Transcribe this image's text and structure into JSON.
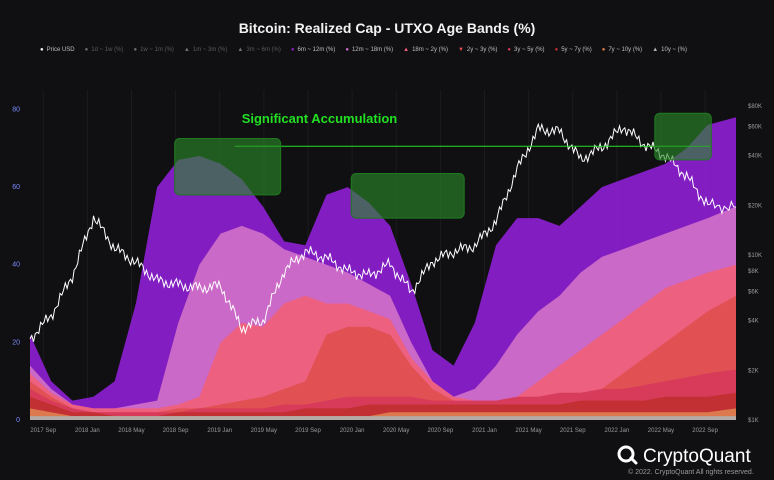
{
  "chart_data": {
    "type": "area",
    "title": "Bitcoin: Realized Cap - UTXO Age Bands (%)",
    "legend": [
      {
        "name": "Price USD",
        "active": true,
        "color": "#ffffff",
        "marker": "dot"
      },
      {
        "name": "1d ~ 1w (%)",
        "active": false,
        "color": "#6f6f6f",
        "marker": "dot"
      },
      {
        "name": "1w ~ 1m (%)",
        "active": false,
        "color": "#6f6f6f",
        "marker": "dot"
      },
      {
        "name": "1m ~ 3m (%)",
        "active": false,
        "color": "#6f6f6f",
        "marker": "tri"
      },
      {
        "name": "3m ~ 6m (%)",
        "active": false,
        "color": "#6f6f6f",
        "marker": "tri"
      },
      {
        "name": "6m ~ 12m (%)",
        "active": true,
        "color": "#8c1fd0",
        "marker": "dot"
      },
      {
        "name": "12m ~ 18m (%)",
        "active": true,
        "color": "#d070c8",
        "marker": "dot"
      },
      {
        "name": "18m ~ 2y (%)",
        "active": true,
        "color": "#f0607a",
        "marker": "tri"
      },
      {
        "name": "2y ~ 3y (%)",
        "active": true,
        "color": "#e05050",
        "marker": "tridown"
      },
      {
        "name": "3y ~ 5y (%)",
        "active": true,
        "color": "#d63a5a",
        "marker": "dot"
      },
      {
        "name": "5y ~ 7y (%)",
        "active": true,
        "color": "#c03030",
        "marker": "dot"
      },
      {
        "name": "7y ~ 10y (%)",
        "active": true,
        "color": "#e08050",
        "marker": "dot"
      },
      {
        "name": "10y ~ (%)",
        "active": true,
        "color": "#b0b0b0",
        "marker": "tri"
      }
    ],
    "x_ticks": [
      "2017 Sep",
      "2018 Jan",
      "2018 May",
      "2018 Sep",
      "2019 Jan",
      "2019 May",
      "2019 Sep",
      "2020 Jan",
      "2020 May",
      "2020 Sep",
      "2021 Jan",
      "2021 May",
      "2021 Sep",
      "2022 Jan",
      "2022 May",
      "2022 Sep"
    ],
    "y_left_ticks": [
      "0",
      "20",
      "40",
      "60",
      "80"
    ],
    "y_left_range": [
      0,
      85
    ],
    "y_right_ticks": [
      "$1K",
      "$2K",
      "$4K",
      "$6K",
      "$8K",
      "$10K",
      "$20K",
      "$40K",
      "$60K",
      "$80K"
    ],
    "y_right_log": true,
    "y_right_range": [
      1000,
      100000
    ],
    "x": [
      0.0,
      0.03,
      0.06,
      0.09,
      0.12,
      0.15,
      0.18,
      0.21,
      0.24,
      0.27,
      0.3,
      0.33,
      0.36,
      0.39,
      0.42,
      0.45,
      0.48,
      0.51,
      0.54,
      0.57,
      0.6,
      0.63,
      0.66,
      0.69,
      0.72,
      0.75,
      0.78,
      0.81,
      0.84,
      0.87,
      0.9,
      0.93,
      0.96,
      1.0
    ],
    "x_range_note_hidden": true,
    "price_usd": [
      3100,
      4300,
      7500,
      17000,
      11000,
      9000,
      7000,
      6600,
      6300,
      6500,
      3600,
      4000,
      8000,
      10500,
      9600,
      8000,
      7500,
      8800,
      6000,
      9200,
      10500,
      11400,
      16000,
      33000,
      58000,
      56000,
      38000,
      45000,
      60000,
      47000,
      40000,
      30000,
      20000,
      19500
    ],
    "series": [
      {
        "name": "6m ~ 12m (%)",
        "color": "#8c1fd0",
        "values": [
          22,
          10,
          5,
          6,
          10,
          30,
          60,
          67,
          68,
          66,
          62,
          55,
          46,
          45,
          58,
          60,
          56,
          50,
          35,
          18,
          14,
          25,
          45,
          52,
          52,
          50,
          55,
          60,
          62,
          64,
          66,
          70,
          76,
          78
        ]
      },
      {
        "name": "12m ~ 18m (%)",
        "color": "#d070c8",
        "values": [
          14,
          8,
          4,
          3,
          3,
          4,
          5,
          25,
          40,
          48,
          50,
          48,
          44,
          42,
          40,
          38,
          35,
          32,
          20,
          10,
          6,
          8,
          14,
          22,
          28,
          32,
          38,
          42,
          44,
          46,
          48,
          50,
          52,
          55
        ]
      },
      {
        "name": "18m ~ 2y (%)",
        "color": "#f0607a",
        "values": [
          12,
          7,
          4,
          3,
          3,
          3,
          3,
          4,
          6,
          20,
          25,
          24,
          30,
          32,
          30,
          30,
          28,
          26,
          16,
          10,
          6,
          5,
          5,
          6,
          10,
          14,
          18,
          22,
          26,
          30,
          34,
          36,
          38,
          40
        ]
      },
      {
        "name": "2y ~ 3y (%)",
        "color": "#e05050",
        "values": [
          10,
          6,
          3,
          2,
          2,
          2,
          2,
          3,
          3,
          4,
          5,
          6,
          8,
          10,
          22,
          24,
          24,
          22,
          14,
          8,
          5,
          4,
          4,
          4,
          4,
          4,
          5,
          8,
          12,
          16,
          20,
          24,
          28,
          32
        ]
      },
      {
        "name": "3y ~ 5y (%)",
        "color": "#d63a5a",
        "values": [
          8,
          5,
          3,
          2,
          2,
          2,
          2,
          2,
          3,
          3,
          3,
          3,
          4,
          4,
          5,
          6,
          6,
          6,
          6,
          5,
          5,
          5,
          5,
          6,
          6,
          7,
          7,
          8,
          8,
          9,
          10,
          11,
          12,
          13
        ]
      },
      {
        "name": "5y ~ 7y (%)",
        "color": "#c03030",
        "values": [
          6,
          4,
          2,
          2,
          1,
          1,
          1,
          2,
          2,
          2,
          2,
          2,
          2,
          3,
          3,
          3,
          4,
          4,
          4,
          4,
          4,
          4,
          4,
          4,
          4,
          4,
          5,
          5,
          5,
          5,
          6,
          6,
          6,
          7
        ]
      },
      {
        "name": "7y ~ 10y (%)",
        "color": "#e08050",
        "values": [
          3,
          2,
          1,
          1,
          1,
          1,
          1,
          1,
          1,
          1,
          1,
          1,
          1,
          1,
          1,
          1,
          1,
          2,
          2,
          2,
          2,
          2,
          2,
          2,
          2,
          2,
          2,
          2,
          2,
          2,
          2,
          2,
          2,
          3
        ]
      },
      {
        "name": "10y ~ (%)",
        "color": "#b0b0b0",
        "values": [
          1,
          1,
          1,
          1,
          1,
          1,
          1,
          1,
          1,
          1,
          1,
          1,
          1,
          1,
          1,
          1,
          1,
          1,
          1,
          1,
          1,
          1,
          1,
          1,
          1,
          1,
          1,
          1,
          1,
          1,
          1,
          1,
          1,
          1
        ]
      }
    ],
    "annotations": {
      "text": "Significant Accumulation",
      "text_color": "#22e022",
      "reference_level": 70.5,
      "boxes": [
        {
          "x_start": 0.205,
          "x_end": 0.355,
          "y_low": 58,
          "y_high": 72.5
        },
        {
          "x_start": 0.455,
          "x_end": 0.615,
          "y_low": 52,
          "y_high": 63.5
        },
        {
          "x_start": 0.885,
          "x_end": 0.965,
          "y_low": 67,
          "y_high": 79
        }
      ],
      "line_x_range": [
        0.29,
        0.965
      ]
    }
  },
  "footer": {
    "brand": "CryptoQuant",
    "copyright": "© 2022. CryptoQuant All rights reserved."
  }
}
